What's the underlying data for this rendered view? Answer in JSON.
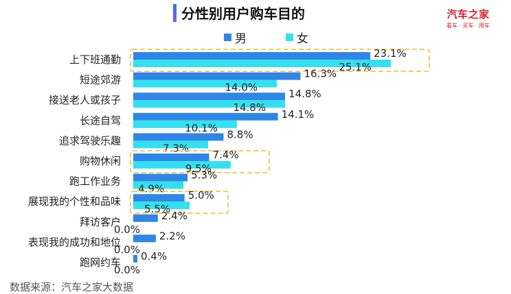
{
  "title": "分性别用户购车目的",
  "logo": {
    "main": "汽车之家",
    "sub": "看车 · 买车 · 用车"
  },
  "source": "数据来源：汽车之家大数据",
  "colors": {
    "male": "#2f86e6",
    "female": "#33e0f0",
    "highlight": "#f5c542",
    "logo": "#d8202a"
  },
  "chart_data": {
    "type": "bar",
    "orientation": "horizontal",
    "title": "分性别用户购车目的",
    "categories": [
      "上下班通勤",
      "短途郊游",
      "接送老人或孩子",
      "长途自驾",
      "追求驾驶乐趣",
      "购物休闲",
      "跑工作业务",
      "展现我的个性和品味",
      "拜访客户",
      "表现我的成功和地位",
      "跑网约车"
    ],
    "series": [
      {
        "name": "男",
        "values": [
          23.1,
          16.3,
          14.8,
          14.1,
          8.8,
          7.4,
          5.3,
          5.0,
          2.4,
          2.2,
          0.4
        ],
        "labels": [
          "23.1%",
          "16.3%",
          "14.8%",
          "14.1%",
          "8.8%",
          "7.4%",
          "5.3%",
          "5.0%",
          "2.4%",
          "2.2%",
          "0.4%"
        ]
      },
      {
        "name": "女",
        "values": [
          25.1,
          14.0,
          14.8,
          10.1,
          7.3,
          9.5,
          4.9,
          5.5,
          0.0,
          0.0,
          0.0
        ],
        "labels": [
          "25.1%",
          "14.0%",
          "14.8%",
          "10.1%",
          "7.3%",
          "9.5%",
          "4.9%",
          "5.5%",
          "0.0%",
          "0.0%",
          "0.0%"
        ]
      }
    ],
    "highlighted_categories": [
      "上下班通勤",
      "购物休闲",
      "展现我的个性和品味"
    ],
    "xlim": [
      0,
      25.1
    ],
    "legend_position": "top",
    "grid": false
  }
}
